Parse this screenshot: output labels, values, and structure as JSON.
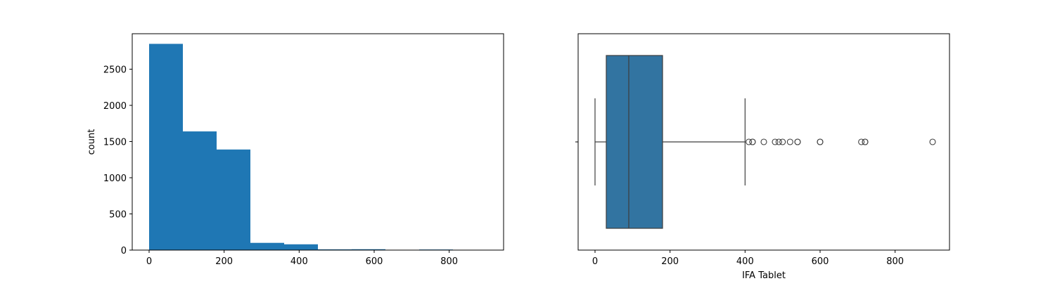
{
  "colors": {
    "histogram_bar": "#1f77b4",
    "box_fill": "#3274a1",
    "box_line": "#3d3d3d",
    "axis": "#000000"
  },
  "chart_data": [
    {
      "type": "bar",
      "subtype": "histogram",
      "title": "",
      "xlabel": "",
      "ylabel": "count",
      "xlim": [
        -45,
        945
      ],
      "ylim": [
        0,
        2990
      ],
      "xticks": [
        0,
        200,
        400,
        600,
        800
      ],
      "yticks": [
        0,
        500,
        1000,
        1500,
        2000,
        2500
      ],
      "bins": [
        {
          "x0": 0,
          "x1": 90,
          "count": 2850
        },
        {
          "x0": 90,
          "x1": 180,
          "count": 1640
        },
        {
          "x0": 180,
          "x1": 270,
          "count": 1390
        },
        {
          "x0": 270,
          "x1": 360,
          "count": 100
        },
        {
          "x0": 360,
          "x1": 450,
          "count": 80
        },
        {
          "x0": 450,
          "x1": 540,
          "count": 10
        },
        {
          "x0": 540,
          "x1": 630,
          "count": 12
        },
        {
          "x0": 630,
          "x1": 720,
          "count": 0
        },
        {
          "x0": 720,
          "x1": 810,
          "count": 8
        },
        {
          "x0": 810,
          "x1": 900,
          "count": 2
        }
      ],
      "grid": false
    },
    {
      "type": "boxplot",
      "title": "",
      "xlabel": "IFA Tablet",
      "ylabel": "",
      "xlim": [
        -45,
        945
      ],
      "xticks": [
        0,
        200,
        400,
        600,
        800
      ],
      "box": {
        "whisker_low": 0,
        "q1": 30,
        "median": 90,
        "q3": 180,
        "whisker_high": 400
      },
      "outliers": [
        410,
        420,
        420,
        450,
        480,
        490,
        500,
        520,
        540,
        540,
        600,
        600,
        710,
        720,
        720,
        900
      ],
      "grid": false
    }
  ]
}
